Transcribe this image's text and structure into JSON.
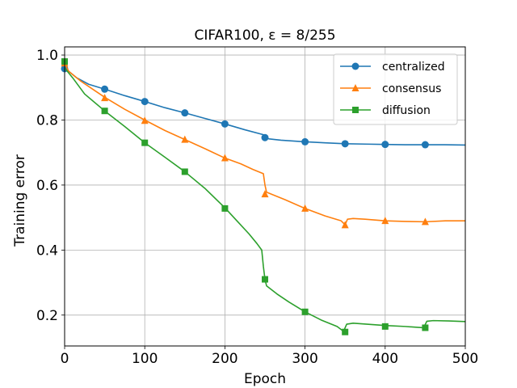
{
  "chart_data": {
    "type": "line",
    "title": "CIFAR100, ε = 8/255",
    "xlabel": "Epoch",
    "ylabel": "Training error",
    "xlim": [
      0,
      500
    ],
    "ylim": [
      0.105,
      1.025
    ],
    "xticks": [
      0,
      100,
      200,
      300,
      400,
      500
    ],
    "xtick_labels": [
      "0",
      "100",
      "200",
      "300",
      "400",
      "500"
    ],
    "yticks": [
      0.2,
      0.4,
      0.6,
      0.8,
      1.0
    ],
    "ytick_labels": [
      "0.2",
      "0.4",
      "0.6",
      "0.8",
      "1.0"
    ],
    "grid": true,
    "legend_position": "top-right",
    "series": [
      {
        "name": "centralized",
        "color": "#1f77b4",
        "marker": "circle",
        "line": [
          [
            0,
            0.97
          ],
          [
            5,
            0.95
          ],
          [
            15,
            0.93
          ],
          [
            30,
            0.91
          ],
          [
            50,
            0.895
          ],
          [
            75,
            0.875
          ],
          [
            100,
            0.857
          ],
          [
            125,
            0.838
          ],
          [
            150,
            0.822
          ],
          [
            175,
            0.805
          ],
          [
            200,
            0.788
          ],
          [
            225,
            0.77
          ],
          [
            248,
            0.755
          ],
          [
            250,
            0.748
          ],
          [
            255,
            0.742
          ],
          [
            270,
            0.738
          ],
          [
            300,
            0.733
          ],
          [
            325,
            0.73
          ],
          [
            350,
            0.727
          ],
          [
            375,
            0.726
          ],
          [
            400,
            0.725
          ],
          [
            425,
            0.724
          ],
          [
            450,
            0.724
          ],
          [
            475,
            0.724
          ],
          [
            500,
            0.723
          ]
        ],
        "markers": [
          [
            0,
            0.958
          ],
          [
            50,
            0.895
          ],
          [
            100,
            0.857
          ],
          [
            150,
            0.822
          ],
          [
            200,
            0.788
          ],
          [
            250,
            0.746
          ],
          [
            300,
            0.733
          ],
          [
            350,
            0.727
          ],
          [
            400,
            0.725
          ],
          [
            450,
            0.724
          ]
        ]
      },
      {
        "name": "consensus",
        "color": "#ff7f0e",
        "marker": "triangle",
        "line": [
          [
            0,
            0.975
          ],
          [
            5,
            0.95
          ],
          [
            20,
            0.92
          ],
          [
            35,
            0.895
          ],
          [
            50,
            0.87
          ],
          [
            75,
            0.833
          ],
          [
            100,
            0.8
          ],
          [
            125,
            0.768
          ],
          [
            150,
            0.74
          ],
          [
            175,
            0.712
          ],
          [
            200,
            0.683
          ],
          [
            220,
            0.665
          ],
          [
            235,
            0.648
          ],
          [
            248,
            0.635
          ],
          [
            250,
            0.6
          ],
          [
            252,
            0.578
          ],
          [
            260,
            0.57
          ],
          [
            275,
            0.555
          ],
          [
            300,
            0.528
          ],
          [
            325,
            0.505
          ],
          [
            345,
            0.49
          ],
          [
            350,
            0.478
          ],
          [
            353,
            0.495
          ],
          [
            360,
            0.497
          ],
          [
            375,
            0.495
          ],
          [
            400,
            0.49
          ],
          [
            425,
            0.488
          ],
          [
            450,
            0.487
          ],
          [
            475,
            0.49
          ],
          [
            500,
            0.49
          ]
        ],
        "markers": [
          [
            0,
            0.975
          ],
          [
            50,
            0.868
          ],
          [
            100,
            0.798
          ],
          [
            150,
            0.74
          ],
          [
            200,
            0.683
          ],
          [
            250,
            0.572
          ],
          [
            300,
            0.528
          ],
          [
            350,
            0.477
          ],
          [
            400,
            0.49
          ],
          [
            450,
            0.487
          ]
        ]
      },
      {
        "name": "diffusion",
        "color": "#2ca02c",
        "marker": "square",
        "line": [
          [
            0,
            0.96
          ],
          [
            10,
            0.93
          ],
          [
            25,
            0.88
          ],
          [
            50,
            0.828
          ],
          [
            75,
            0.78
          ],
          [
            100,
            0.73
          ],
          [
            125,
            0.686
          ],
          [
            150,
            0.641
          ],
          [
            175,
            0.59
          ],
          [
            200,
            0.53
          ],
          [
            215,
            0.49
          ],
          [
            230,
            0.45
          ],
          [
            240,
            0.42
          ],
          [
            246,
            0.4
          ],
          [
            248,
            0.35
          ],
          [
            250,
            0.31
          ],
          [
            252,
            0.29
          ],
          [
            265,
            0.265
          ],
          [
            280,
            0.24
          ],
          [
            300,
            0.21
          ],
          [
            320,
            0.185
          ],
          [
            340,
            0.165
          ],
          [
            348,
            0.15
          ],
          [
            352,
            0.172
          ],
          [
            360,
            0.175
          ],
          [
            400,
            0.168
          ],
          [
            425,
            0.165
          ],
          [
            448,
            0.161
          ],
          [
            452,
            0.181
          ],
          [
            460,
            0.183
          ],
          [
            480,
            0.182
          ],
          [
            500,
            0.18
          ]
        ],
        "markers": [
          [
            0,
            0.98
          ],
          [
            50,
            0.828
          ],
          [
            100,
            0.73
          ],
          [
            150,
            0.641
          ],
          [
            200,
            0.528
          ],
          [
            250,
            0.31
          ],
          [
            300,
            0.21
          ],
          [
            350,
            0.148
          ],
          [
            400,
            0.165
          ],
          [
            450,
            0.161
          ]
        ]
      }
    ]
  }
}
